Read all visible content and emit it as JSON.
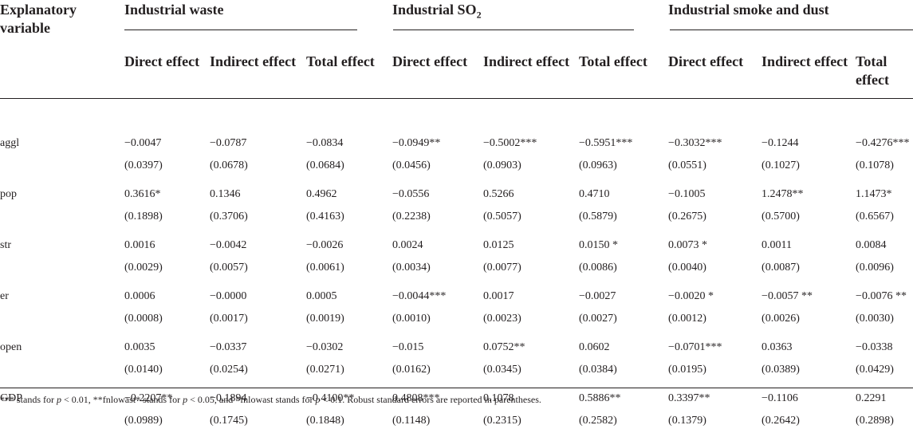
{
  "header": {
    "variable_label": "Explanatory variable",
    "groups": [
      {
        "name": "Industrial waste",
        "sub": ""
      },
      {
        "name": "Industrial SO",
        "sub": "2"
      },
      {
        "name": "Industrial smoke and dust",
        "sub": ""
      }
    ],
    "effects": [
      "Direct effect",
      "Indirect effect",
      "Total effect"
    ]
  },
  "rows": [
    {
      "var": "aggl",
      "est": [
        "−0.0047",
        "−0.0787",
        "−0.0834",
        "−0.0949**",
        "−0.5002***",
        "−0.5951***",
        "−0.3032***",
        "−0.1244",
        "−0.4276***"
      ],
      "se": [
        "(0.0397)",
        "(0.0678)",
        "(0.0684)",
        "(0.0456)",
        "(0.0903)",
        "(0.0963)",
        "(0.0551)",
        "(0.1027)",
        "(0.1078)"
      ]
    },
    {
      "var": "pop",
      "est": [
        "0.3616*",
        "0.1346",
        "0.4962",
        "−0.0556",
        "0.5266",
        "0.4710",
        "−0.1005",
        "1.2478**",
        "1.1473*"
      ],
      "se": [
        "(0.1898)",
        "(0.3706)",
        "(0.4163)",
        "(0.2238)",
        "(0.5057)",
        "(0.5879)",
        "(0.2675)",
        "(0.5700)",
        "(0.6567)"
      ]
    },
    {
      "var": "str",
      "est": [
        "0.0016",
        "−0.0042",
        "−0.0026",
        "0.0024",
        "0.0125",
        "0.0150 *",
        "0.0073 *",
        "0.0011",
        "0.0084"
      ],
      "se": [
        "(0.0029)",
        "(0.0057)",
        "(0.0061)",
        "(0.0034)",
        "(0.0077)",
        "(0.0086)",
        "(0.0040)",
        "(0.0087)",
        "(0.0096)"
      ]
    },
    {
      "var": "er",
      "est": [
        "0.0006",
        "−0.0000",
        "0.0005",
        "−0.0044***",
        "0.0017",
        "−0.0027",
        "−0.0020 *",
        "−0.0057 **",
        "−0.0076 **"
      ],
      "se": [
        "(0.0008)",
        "(0.0017)",
        "(0.0019)",
        "(0.0010)",
        "(0.0023)",
        "(0.0027)",
        "(0.0012)",
        "(0.0026)",
        "(0.0030)"
      ]
    },
    {
      "var": "open",
      "est": [
        "0.0035",
        "−0.0337",
        "−0.0302",
        "−0.015",
        "0.0752**",
        "0.0602",
        "−0.0701***",
        "0.0363",
        "−0.0338"
      ],
      "se": [
        "(0.0140)",
        "(0.0254)",
        "(0.0271)",
        "(0.0162)",
        "(0.0345)",
        "(0.0384)",
        "(0.0195)",
        "(0.0389)",
        "(0.0429)"
      ]
    },
    {
      "var": "GDP",
      "est": [
        "−0.2207**",
        "−0.1894",
        "−0.4100**",
        "0.4808***",
        "0.1078",
        "0.5886**",
        "0.3397**",
        "−0.1106",
        "0.2291"
      ],
      "se": [
        "(0.0989)",
        "(0.1745)",
        "(0.1848)",
        "(0.1148)",
        "(0.2315)",
        "(0.2582)",
        "(0.1379)",
        "(0.2642)",
        "(0.2898)"
      ]
    }
  ],
  "note": {
    "parts": [
      "*** stands for ",
      "p",
      " < 0.01, **fnlowast* stands for ",
      "p",
      " < 0.05, and *fnlowast stands for ",
      "p",
      " < 0.1. Robust standard errors are reported in parentheses."
    ]
  }
}
